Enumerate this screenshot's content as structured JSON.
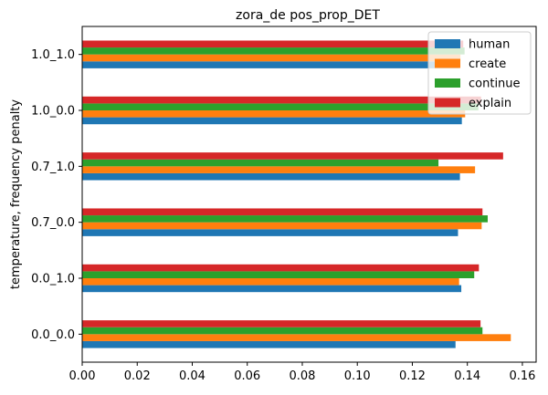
{
  "chart_data": {
    "type": "bar",
    "orientation": "horizontal",
    "title": "zora_de pos_prop_DET",
    "xlabel": "",
    "ylabel": "temperature, frequency penalty",
    "categories": [
      "0.0_0.0",
      "0.0_1.0",
      "0.7_0.0",
      "0.7_1.0",
      "1.0_0.0",
      "1.0_1.0"
    ],
    "xlim": [
      0,
      0.165
    ],
    "xticks": [
      0.0,
      0.02,
      0.04,
      0.06,
      0.08,
      0.1,
      0.12,
      0.14,
      0.16
    ],
    "xtick_labels": [
      "0.00",
      "0.02",
      "0.04",
      "0.06",
      "0.08",
      "0.10",
      "0.12",
      "0.14",
      "0.16"
    ],
    "legend_position": "top-right",
    "grid": false,
    "series": [
      {
        "name": "human",
        "color": "#1f77b4",
        "values": [
          0.1357,
          0.1378,
          0.1366,
          0.1373,
          0.138,
          0.137
        ]
      },
      {
        "name": "create",
        "color": "#ff7f0e",
        "values": [
          0.1558,
          0.137,
          0.1452,
          0.1428,
          0.1392,
          0.1375
        ]
      },
      {
        "name": "continue",
        "color": "#2ca02c",
        "values": [
          0.1455,
          0.1425,
          0.1474,
          0.1295,
          0.144,
          0.139
        ]
      },
      {
        "name": "explain",
        "color": "#d62728",
        "values": [
          0.1448,
          0.1442,
          0.1455,
          0.153,
          0.145,
          0.1385
        ]
      }
    ]
  }
}
